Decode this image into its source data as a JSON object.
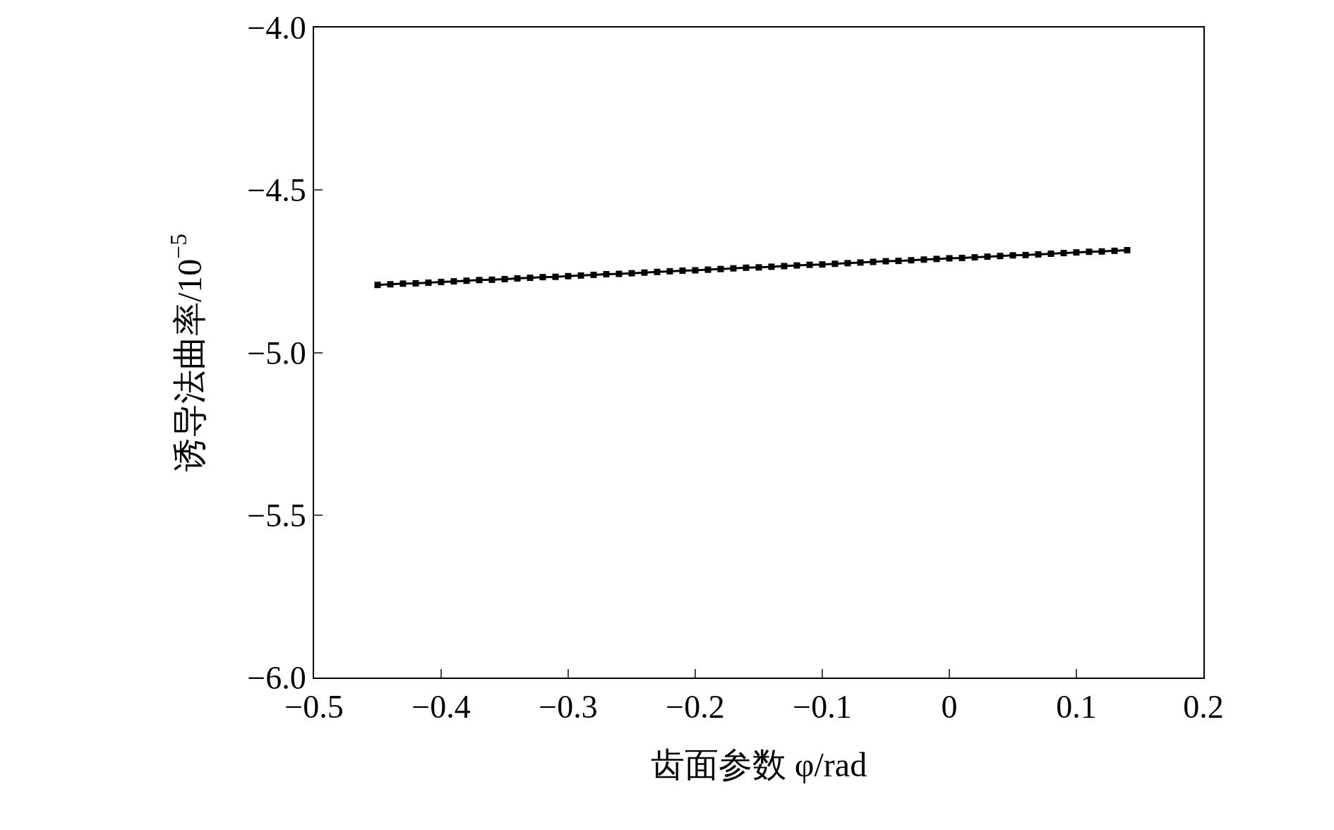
{
  "chart_data": {
    "type": "line",
    "xlabel": "齿面参数 φ/rad",
    "ylabel": "诱导法曲率/10$^{−5}$",
    "x": [
      -0.45,
      -0.44,
      -0.43,
      -0.42,
      -0.41,
      -0.4,
      -0.39,
      -0.38,
      -0.37,
      -0.36,
      -0.35,
      -0.34,
      -0.33,
      -0.32,
      -0.31,
      -0.3,
      -0.29,
      -0.28,
      -0.27,
      -0.26,
      -0.25,
      -0.24,
      -0.23,
      -0.22,
      -0.21,
      -0.2,
      -0.19,
      -0.18,
      -0.17,
      -0.16,
      -0.15,
      -0.14,
      -0.13,
      -0.12,
      -0.11,
      -0.1,
      -0.09,
      -0.08,
      -0.07,
      -0.06,
      -0.05,
      -0.04,
      -0.03,
      -0.02,
      -0.01,
      0.0,
      0.01,
      0.02,
      0.03,
      0.04,
      0.05,
      0.06,
      0.07,
      0.08,
      0.09,
      0.1,
      0.11,
      0.12,
      0.13,
      0.14
    ],
    "series": [
      {
        "color": "#000000",
        "values": [
          -4.792,
          -4.79,
          -4.788,
          -4.787,
          -4.785,
          -4.783,
          -4.781,
          -4.779,
          -4.777,
          -4.776,
          -4.774,
          -4.772,
          -4.77,
          -4.768,
          -4.767,
          -4.765,
          -4.763,
          -4.761,
          -4.759,
          -4.758,
          -4.756,
          -4.754,
          -4.752,
          -4.75,
          -4.748,
          -4.747,
          -4.745,
          -4.743,
          -4.741,
          -4.739,
          -4.738,
          -4.736,
          -4.734,
          -4.732,
          -4.73,
          -4.729,
          -4.727,
          -4.725,
          -4.723,
          -4.721,
          -4.719,
          -4.718,
          -4.716,
          -4.714,
          -4.712,
          -4.71,
          -4.709,
          -4.707,
          -4.705,
          -4.703,
          -4.701,
          -4.7,
          -4.698,
          -4.696,
          -4.694,
          -4.692,
          -4.69,
          -4.689,
          -4.687,
          -4.685
        ]
      }
    ],
    "xlim": [
      -0.5,
      0.2
    ],
    "xticks": [
      {
        "value": -0.5,
        "label": "−0.5"
      },
      {
        "value": -0.4,
        "label": "−0.4"
      },
      {
        "value": -0.3,
        "label": "−0.3"
      },
      {
        "value": -0.2,
        "label": "−0.2"
      },
      {
        "value": -0.1,
        "label": "−0.1"
      },
      0,
      0.1,
      0.2
    ],
    "ylim": [
      -6.0,
      -4.0
    ],
    "yticks": [
      {
        "value": -6.0,
        "label": "−6.0"
      },
      {
        "value": -5.5,
        "label": "−5.5"
      },
      {
        "value": -5.0,
        "label": "−5.0"
      },
      {
        "value": -4.5,
        "label": "−4.5"
      },
      {
        "value": -4.0,
        "label": "−4.0"
      }
    ],
    "marker": "square",
    "line_style": "solid",
    "legend": false
  }
}
